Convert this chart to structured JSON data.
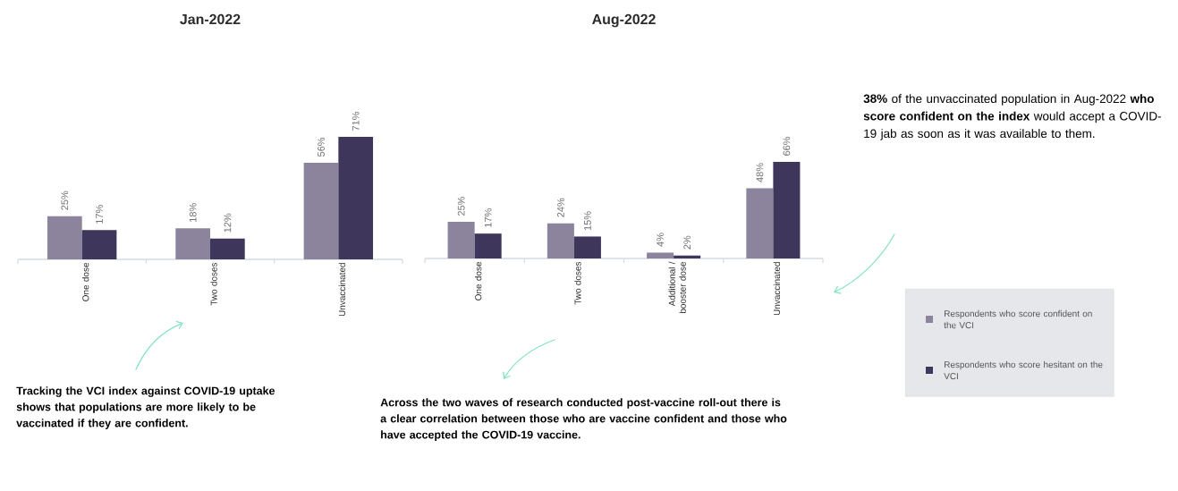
{
  "chart_data": [
    {
      "type": "bar",
      "title": "Jan-2022",
      "categories": [
        "One dose",
        "Two doses",
        "Unvaccinated"
      ],
      "series": [
        {
          "color": "#8b849c",
          "values": [
            25,
            18,
            56
          ],
          "value_labels": [
            "25%",
            "18%",
            "56%"
          ]
        },
        {
          "color": "#3f365c",
          "values": [
            17,
            12,
            71
          ],
          "value_labels": [
            "17%",
            "12%",
            "71%"
          ]
        }
      ],
      "annotations": [
        "Tracking the VCI index against COVID-19 uptake shows that populations are more likely to be vaccinated if they are confident."
      ]
    },
    {
      "type": "bar",
      "title": "Aug-2022",
      "categories": [
        "One dose",
        "Two doses",
        "Additional / booster dose",
        "Unvaccinated"
      ],
      "series": [
        {
          "name": "Respondents who score confident on the VCI",
          "color": "#8b849c",
          "values": [
            25,
            24,
            4,
            48
          ],
          "value_labels": [
            "25%",
            "24%",
            "4%",
            "48%"
          ]
        },
        {
          "name": "Respondents who score hesitant on the VCI",
          "color": "#3f365c",
          "values": [
            17,
            15,
            2,
            66
          ],
          "value_labels": [
            "17%",
            "15%",
            "2%",
            "66%"
          ]
        }
      ],
      "legend": "right",
      "annotations": [
        "Across the two waves of research conducted post-vaccine roll-out there is a clear correlation between those who are vaccine confident and those who have accepted the COVID-19 vaccine.",
        "**38%** of the unvaccinated population in Aug-2022 **who score confident on the index** would accept a COVID-19 jab as soon as it was available to them."
      ]
    }
  ]
}
